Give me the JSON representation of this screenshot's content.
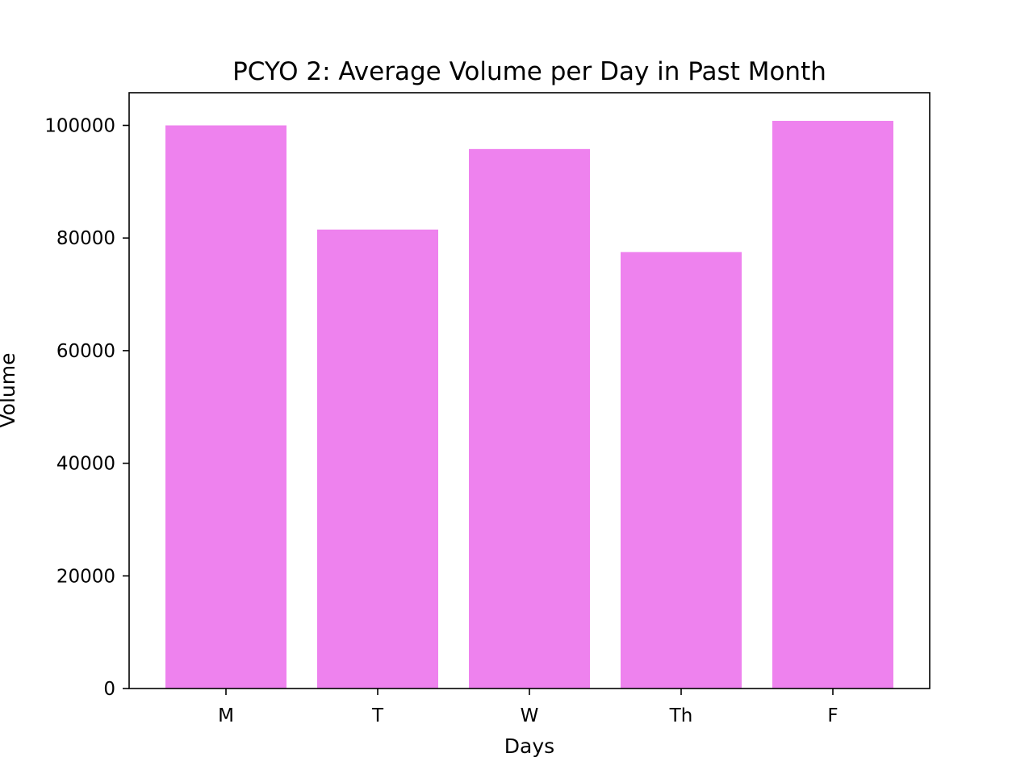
{
  "chart_data": {
    "type": "bar",
    "title": "PCYO 2: Average Volume per Day in Past Month",
    "xlabel": "Days",
    "ylabel": "Volume",
    "categories": [
      "M",
      "T",
      "W",
      "Th",
      "F"
    ],
    "values": [
      100000,
      81500,
      95800,
      77500,
      100800
    ],
    "ylim": [
      0,
      105800
    ],
    "yticks": [
      0,
      20000,
      40000,
      60000,
      80000,
      100000
    ],
    "bar_color": "#ee82ee",
    "grid": false,
    "legend": "none"
  }
}
